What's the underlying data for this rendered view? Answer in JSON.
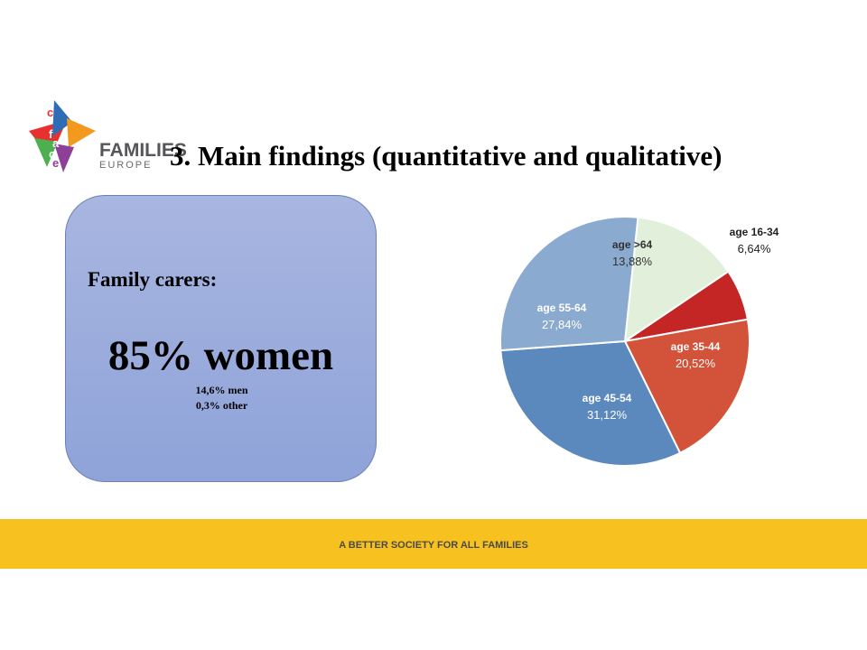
{
  "logo": {
    "letters": [
      "c",
      "o",
      "f",
      "a",
      "c",
      "e"
    ],
    "word1": "FAMILIES",
    "word2": "EUROPE"
  },
  "title": "3. Main findings (quantitative and qualitative)",
  "stat_box": {
    "label": "Family carers:",
    "main": "85% women",
    "sub1": "14,6% men",
    "sub2": "0,3% other"
  },
  "chart_data": {
    "type": "pie",
    "title": "",
    "slices": [
      {
        "label": "age >64",
        "value_label": "13,88%",
        "value": 13.88,
        "color": "#e2efdb"
      },
      {
        "label": "age 16-34",
        "value_label": "6,64%",
        "value": 6.64,
        "color": "#c42525"
      },
      {
        "label": "age 35-44",
        "value_label": "20,52%",
        "value": 20.52,
        "color": "#d2523a"
      },
      {
        "label": "age 45-54",
        "value_label": "31,12%",
        "value": 31.12,
        "color": "#5b88bd"
      },
      {
        "label": "age 55-64",
        "value_label": "27,84%",
        "value": 27.84,
        "color": "#8aaad0"
      }
    ]
  },
  "footer": {
    "text": "A BETTER SOCIETY FOR ALL FAMILIES"
  }
}
